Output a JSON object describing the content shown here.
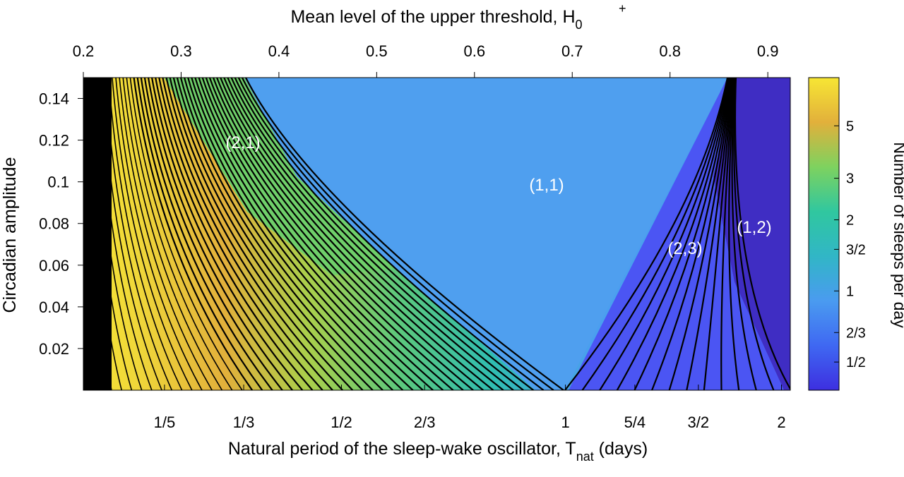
{
  "chart_data": {
    "type": "heatmap",
    "title": "",
    "top_axis": {
      "label": "Mean level of the upper threshold, H",
      "label_sub": "0",
      "label_sup": "+",
      "ticks": [
        0.2,
        0.3,
        0.4,
        0.5,
        0.6,
        0.7,
        0.8,
        0.9
      ],
      "tick_labels": [
        "0.2",
        "0.3",
        "0.4",
        "0.5",
        "0.6",
        "0.7",
        "0.8",
        "0.9"
      ],
      "range": [
        0.2,
        0.923
      ]
    },
    "bottom_axis": {
      "label_main": "Natural period of the sleep-wake oscillator, T",
      "label_sub": "nat",
      "label_tail": " (days)",
      "scale": "reciprocal",
      "tick_values": [
        0.2,
        0.3333,
        0.5,
        0.6667,
        1,
        1.25,
        1.5,
        2
      ],
      "tick_labels": [
        "1/5",
        "1/3",
        "1/2",
        "2/3",
        "1",
        "5/4",
        "3/2",
        "2"
      ]
    },
    "y_axis": {
      "label": "Circadian amplitude",
      "range": [
        0,
        0.15
      ],
      "ticks": [
        0.02,
        0.04,
        0.06,
        0.08,
        0.1,
        0.12,
        0.14
      ],
      "tick_labels": [
        "0.02",
        "0.04",
        "0.06",
        "0.08",
        "0.1",
        "0.12",
        "0.14"
      ]
    },
    "colorbar": {
      "label": "Number of sleeps per day",
      "scale": "log",
      "range": [
        0.38,
        8
      ],
      "ticks": [
        0.5,
        0.6667,
        1,
        1.5,
        2,
        3,
        5
      ],
      "tick_labels": [
        "1/2",
        "2/3",
        "1",
        "3/2",
        "2",
        "3",
        "5"
      ],
      "colors": [
        "#3D2FE0",
        "#3F68F2",
        "#4A9BF0",
        "#31B6C6",
        "#30C79F",
        "#7ED25F",
        "#E2B03B",
        "#F7E634"
      ]
    },
    "regions": [
      {
        "label": "(1,1)",
        "sleeps_per_day": 1,
        "color": "#4F9FEF",
        "H0": 0.655,
        "amplitude": 0.099
      },
      {
        "label": "(1,2)",
        "sleeps_per_day": 0.5,
        "color": "#3F2DC3",
        "H0": 0.887,
        "amplitude": 0.078
      },
      {
        "label": "(2,3)",
        "sleeps_per_day": 0.6667,
        "color": "#4B55F3",
        "H0": 0.812,
        "amplitude": 0.068
      },
      {
        "label": "(2,1)",
        "sleeps_per_day": 2,
        "color": "#6FCF6A",
        "H0": 0.344,
        "amplitude": 0.12
      }
    ],
    "grid": false
  }
}
